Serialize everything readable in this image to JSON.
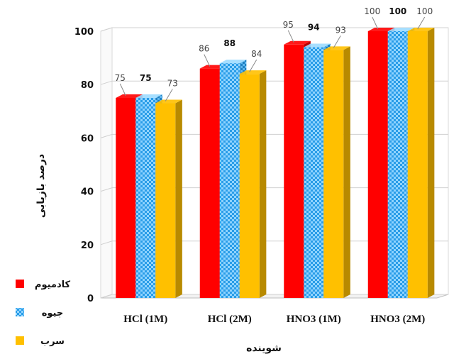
{
  "chart_data": {
    "type": "bar",
    "categories": [
      "HCl (1M)",
      "HCl (2M)",
      "HNO3 (1M)",
      "HNO3 (2M)"
    ],
    "series": [
      {
        "name": "کادمیوم",
        "values": [
          75,
          86,
          95,
          100
        ],
        "color": "#ff0000",
        "pattern": "solid"
      },
      {
        "name": "جیوه",
        "values": [
          75,
          88,
          94,
          100
        ],
        "color": "#33aaff",
        "pattern": "checker"
      },
      {
        "name": "سرب",
        "values": [
          73,
          84,
          93,
          100
        ],
        "color": "#ffc000",
        "pattern": "solid"
      }
    ],
    "data_labels": [
      [
        "75",
        "86",
        "95",
        "100"
      ],
      [
        "75",
        "88",
        "94",
        "100"
      ],
      [
        "73",
        "84",
        "93",
        "100"
      ]
    ],
    "bold_label_series": [
      1
    ],
    "ylabel": "درصد بازیابی",
    "xlabel": "شوینده",
    "ylim": [
      0,
      100
    ],
    "yticks": [
      0,
      20,
      40,
      60,
      80,
      100
    ],
    "grid": true,
    "legend_position": "left-bottom",
    "style": "3d-cylinder"
  }
}
